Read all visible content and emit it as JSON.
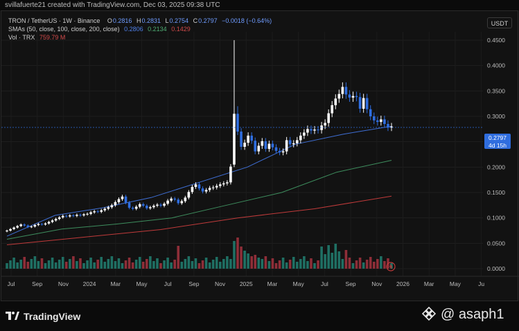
{
  "topbar": {
    "text": "svillafuerte21 created with TradingView.com, Dec 03, 2025 09:38 UTC"
  },
  "legend": {
    "symbol": "TRON / TetherUS · 1W · Binance",
    "o_label": "O",
    "o_value": "0.2816",
    "h_label": "H",
    "h_value": "0.2831",
    "l_label": "L",
    "l_value": "0.2754",
    "c_label": "C",
    "c_value": "0.2797",
    "change": "−0.0018 (−0.64%)",
    "sma_label": "SMAs (50, close, 100, close, 200, close)",
    "sma50": "0.2806",
    "sma100": "0.2134",
    "sma200": "0.1429",
    "vol_label": "Vol · TRX",
    "vol_value": "759.79 M"
  },
  "axis": {
    "currency": "USDT",
    "price_ticks": [
      "0.4500",
      "0.4000",
      "0.3500",
      "0.3000",
      "0.2500",
      "0.2000",
      "0.1500",
      "0.1000",
      "0.0500",
      "0.0000"
    ],
    "time_ticks": [
      "Jul",
      "Sep",
      "Nov",
      "2024",
      "Mar",
      "May",
      "Jul",
      "Sep",
      "Nov",
      "2025",
      "Mar",
      "May",
      "Jul",
      "Sep",
      "Nov",
      "2026",
      "Mar",
      "May",
      "Ju"
    ]
  },
  "price_tag": {
    "price": "0.2797",
    "countdown": "4d 15h"
  },
  "brand": {
    "logo": "TradingView",
    "watermark": "@ asaph1"
  },
  "colors": {
    "up": "#ffffff",
    "down": "#2f6dde",
    "sma50": "#3f6fd6",
    "sma100": "#3e8e5e",
    "sma200": "#c23b3b",
    "vol_up": "#1f6f63",
    "vol_down": "#8e2e38"
  },
  "chart_data": {
    "type": "candlestick",
    "interval": "1W",
    "price_ylim": [
      0,
      0.45
    ],
    "candles_close": [
      0.075,
      0.078,
      0.081,
      0.084,
      0.087,
      0.085,
      0.082,
      0.083,
      0.086,
      0.088,
      0.087,
      0.089,
      0.092,
      0.095,
      0.098,
      0.101,
      0.104,
      0.103,
      0.105,
      0.104,
      0.106,
      0.105,
      0.107,
      0.108,
      0.111,
      0.113,
      0.112,
      0.115,
      0.118,
      0.121,
      0.125,
      0.131,
      0.137,
      0.142,
      0.13,
      0.12,
      0.118,
      0.122,
      0.127,
      0.124,
      0.119,
      0.121,
      0.124,
      0.126,
      0.124,
      0.128,
      0.134,
      0.138,
      0.136,
      0.129,
      0.133,
      0.14,
      0.151,
      0.161,
      0.166,
      0.158,
      0.152,
      0.155,
      0.159,
      0.16,
      0.163,
      0.166,
      0.168,
      0.17,
      0.201,
      0.305,
      0.27,
      0.24,
      0.248,
      0.262,
      0.252,
      0.231,
      0.242,
      0.251,
      0.236,
      0.246,
      0.239,
      0.232,
      0.229,
      0.231,
      0.253,
      0.245,
      0.247,
      0.253,
      0.262,
      0.268,
      0.275,
      0.272,
      0.274,
      0.273,
      0.282,
      0.287,
      0.306,
      0.322,
      0.335,
      0.344,
      0.358,
      0.343,
      0.337,
      0.34,
      0.338,
      0.315,
      0.336,
      0.314,
      0.3,
      0.292,
      0.289,
      0.294,
      0.285,
      0.278,
      0.28
    ],
    "sma50": [
      0.064,
      0.105,
      0.12,
      0.14,
      0.17,
      0.2,
      0.245,
      0.265,
      0.2806
    ],
    "sma100": [
      0.058,
      0.078,
      0.088,
      0.1,
      0.125,
      0.15,
      0.19,
      0.2134
    ],
    "sma200": [
      0.047,
      0.062,
      0.077,
      0.1,
      0.118,
      0.1429
    ]
  }
}
